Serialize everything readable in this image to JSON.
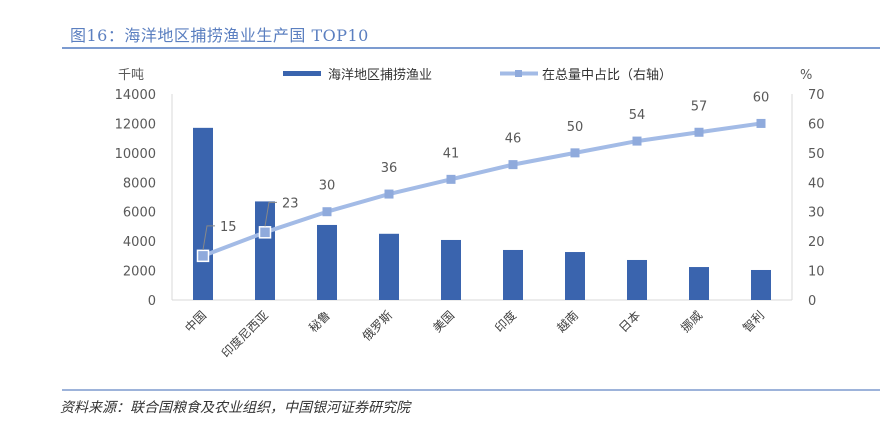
{
  "figure": {
    "title": "图16：海洋地区捕捞渔业生产国 TOP10",
    "source": "资料来源：联合国粮食及农业组织，中国银河证券研究院"
  },
  "colors": {
    "bar": "#3a64ae",
    "line": "#a3bbe6",
    "marker": "#8faadc",
    "title": "#5b7fc0",
    "axis": "#d9d9d9"
  },
  "chart_data": {
    "type": "bar+line",
    "title": "海洋地区捕捞渔业生产国 TOP10",
    "categories": [
      "中国",
      "印度尼西亚",
      "秘鲁",
      "俄罗斯",
      "美国",
      "印度",
      "越南",
      "日本",
      "挪威",
      "智利"
    ],
    "series": [
      {
        "name": "海洋地区捕捞渔业",
        "type": "bar",
        "axis": "left",
        "values": [
          11700,
          6700,
          5100,
          4500,
          4080,
          3400,
          3260,
          2720,
          2240,
          2040
        ]
      },
      {
        "name": "在总量中占比（右轴）",
        "type": "line",
        "axis": "right",
        "values": [
          15,
          23,
          30,
          36,
          41,
          46,
          50,
          54,
          57,
          60
        ],
        "labels": [
          "15",
          "23",
          "30",
          "36",
          "41",
          "46",
          "50",
          "54",
          "57",
          "60"
        ]
      }
    ],
    "left_axis": {
      "unit": "千吨",
      "ylim": [
        0,
        14000
      ],
      "ticks": [
        "0",
        "2000",
        "4000",
        "6000",
        "8000",
        "10000",
        "12000",
        "14000"
      ]
    },
    "right_axis": {
      "unit": "%",
      "ylim": [
        0,
        70
      ],
      "ticks": [
        "0",
        "10",
        "20",
        "30",
        "40",
        "50",
        "60",
        "70"
      ]
    },
    "legend_position": "top-center",
    "grid": false
  }
}
